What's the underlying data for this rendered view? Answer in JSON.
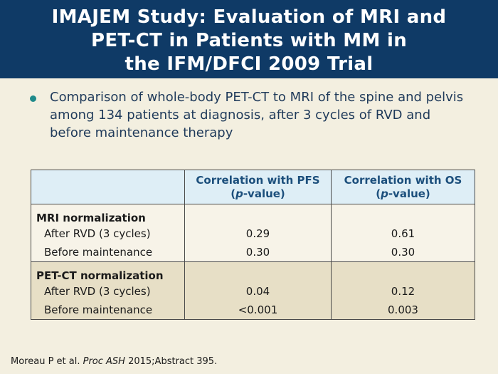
{
  "title": {
    "line1": "IMAJEM Study: Evaluation of MRI and",
    "line2": "PET-CT in Patients with MM in",
    "line3": "the IFM/DFCI 2009 Trial"
  },
  "bullet": "Comparison of whole-body PET-CT to MRI of the spine and pelvis among 134 patients at diagnosis, after 3 cycles of RVD and before maintenance therapy",
  "table": {
    "headers": [
      {
        "line1": "Correlation with PFS",
        "p": "p",
        "suffix": "-value)"
      },
      {
        "line1": "Correlation with OS",
        "p": "p",
        "suffix": "-value)"
      }
    ],
    "groups": [
      {
        "title": "MRI normalization",
        "rows": [
          {
            "label": "After RVD (3 cycles)",
            "pfs": "0.29",
            "os": "0.61"
          },
          {
            "label": "Before maintenance",
            "pfs": "0.30",
            "os": "0.30"
          }
        ]
      },
      {
        "title": "PET-CT normalization",
        "rows": [
          {
            "label": "After RVD (3 cycles)",
            "pfs": "0.04",
            "os": "0.12"
          },
          {
            "label": "Before maintenance",
            "pfs": "<0.001",
            "os": "0.003"
          }
        ]
      }
    ]
  },
  "citation": {
    "authors": "Moreau P et al. ",
    "journal": "Proc ASH",
    "rest": " 2015;Abstract 395."
  }
}
